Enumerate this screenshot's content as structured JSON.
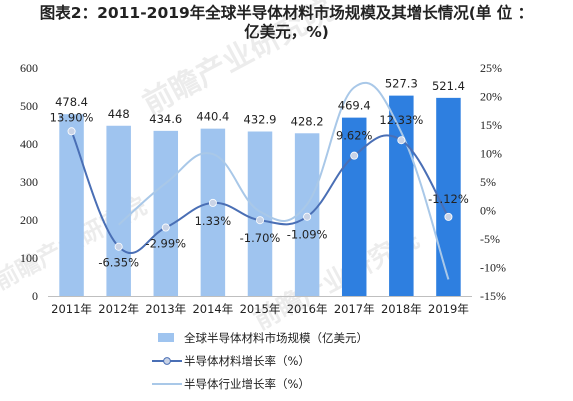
{
  "title_line1": "图表2：2011-2019年全球半导体材料市场规模及其增长情况(单 位 ：",
  "title_line2": "亿美元，%)",
  "chart_data": {
    "type": "bar",
    "categories": [
      "2011年",
      "2012年",
      "2013年",
      "2014年",
      "2015年",
      "2016年",
      "2017年",
      "2018年",
      "2019年"
    ],
    "series": [
      {
        "name": "全球半导体材料市场规模（亿美元）",
        "type": "bar",
        "axis": "left",
        "values": [
          478.4,
          448,
          434.6,
          440.4,
          432.9,
          428.2,
          469.4,
          527.3,
          521.4
        ],
        "labels": [
          "478.4",
          "448",
          "434.6",
          "440.4",
          "432.9",
          "428.2",
          "469.4",
          "527.3",
          "521.4"
        ],
        "color_light": "#9fc4ef",
        "color_dark": "#2e7fe0"
      },
      {
        "name": "半导体材料增长率（%）",
        "type": "line",
        "axis": "right",
        "values": [
          13.9,
          -6.35,
          -2.99,
          1.33,
          -1.7,
          -1.09,
          9.62,
          12.33,
          -1.12
        ],
        "labels": [
          "13.90%",
          "-6.35%",
          "-2.99%",
          "1.33%",
          "-1.70%",
          "-1.09%",
          "9.62%",
          "12.33%",
          "-1.12%"
        ],
        "color": "#4a6fb5"
      },
      {
        "name": "半导体行业增长率（%）",
        "type": "line",
        "axis": "right",
        "values": [
          0.4,
          -2.5,
          4.8,
          9.9,
          -0.2,
          1.1,
          21.6,
          13.7,
          -12.1
        ],
        "color": "#a9c8e8"
      }
    ],
    "ylim": [
      0,
      600
    ],
    "yticks": [
      0,
      100,
      200,
      300,
      400,
      500,
      600
    ],
    "y2lim": [
      -15,
      25
    ],
    "y2ticks": [
      "-15%",
      "-10%",
      "-5%",
      "0%",
      "5%",
      "10%",
      "15%",
      "20%",
      "25%"
    ],
    "grid": false,
    "legend_position": "bottom"
  },
  "watermark": "前瞻产业研究院"
}
